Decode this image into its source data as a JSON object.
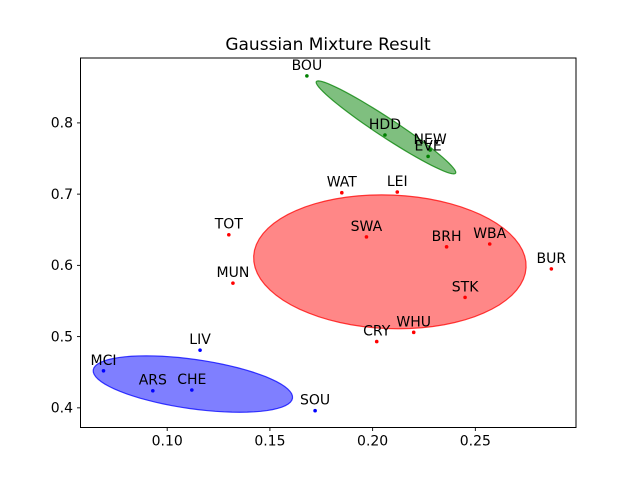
{
  "chart_data": {
    "type": "scatter",
    "title": "Gaussian Mixture Result",
    "xlabel": "",
    "ylabel": "",
    "grid": false,
    "legend": "none",
    "xlim": [
      0.0578,
      0.299
    ],
    "ylim": [
      0.3724,
      0.8911
    ],
    "x_ticks": [
      {
        "value": 0.1,
        "label": "0.10"
      },
      {
        "value": 0.15,
        "label": "0.15"
      },
      {
        "value": 0.2,
        "label": "0.20"
      },
      {
        "value": 0.25,
        "label": "0.25"
      }
    ],
    "y_ticks": [
      {
        "value": 0.4,
        "label": "0.4"
      },
      {
        "value": 0.5,
        "label": "0.5"
      },
      {
        "value": 0.6,
        "label": "0.6"
      },
      {
        "value": 0.7,
        "label": "0.7"
      },
      {
        "value": 0.8,
        "label": "0.8"
      }
    ],
    "clusters": [
      {
        "name": "green",
        "color": "#008000",
        "fill_opacity": 0.5,
        "stroke_opacity": 0.75,
        "ellipse": {
          "center": [
            0.2065,
            0.7937
          ],
          "axis1": [
            0.0339,
            -0.0643
          ],
          "axis2": [
            -0.0025,
            -0.0112
          ]
        },
        "points": [
          {
            "label": "BOU",
            "x": 0.168,
            "y": 0.866
          },
          {
            "label": "HDD",
            "x": 0.206,
            "y": 0.783
          },
          {
            "label": "NEW",
            "x": 0.228,
            "y": 0.762
          },
          {
            "label": "EVE",
            "x": 0.227,
            "y": 0.753
          }
        ]
      },
      {
        "name": "red",
        "color": "#ff0000",
        "fill_opacity": 0.47,
        "stroke_opacity": 0.75,
        "ellipse": {
          "center": [
            0.2084,
            0.605
          ],
          "axis1": [
            0.0662,
            0.0
          ],
          "axis2": [
            -0.004,
            0.094
          ]
        },
        "points": [
          {
            "label": "WAT",
            "x": 0.185,
            "y": 0.702
          },
          {
            "label": "LEI",
            "x": 0.212,
            "y": 0.703
          },
          {
            "label": "TOT",
            "x": 0.13,
            "y": 0.643
          },
          {
            "label": "SWA",
            "x": 0.197,
            "y": 0.64
          },
          {
            "label": "BRH",
            "x": 0.236,
            "y": 0.626
          },
          {
            "label": "WBA",
            "x": 0.257,
            "y": 0.63
          },
          {
            "label": "BUR",
            "x": 0.287,
            "y": 0.595
          },
          {
            "label": "MUN",
            "x": 0.132,
            "y": 0.575
          },
          {
            "label": "STK",
            "x": 0.245,
            "y": 0.555
          },
          {
            "label": "WHU",
            "x": 0.22,
            "y": 0.506
          },
          {
            "label": "CRY",
            "x": 0.202,
            "y": 0.493
          }
        ]
      },
      {
        "name": "blue",
        "color": "#0000ff",
        "fill_opacity": 0.5,
        "stroke_opacity": 0.75,
        "ellipse": {
          "center": [
            0.1125,
            0.4334
          ],
          "axis1": [
            0.0485,
            -0.0198
          ],
          "axis2": [
            -0.0017,
            -0.0343
          ]
        },
        "points": [
          {
            "label": "LIV",
            "x": 0.116,
            "y": 0.481
          },
          {
            "label": "MCI",
            "x": 0.069,
            "y": 0.452
          },
          {
            "label": "ARS",
            "x": 0.093,
            "y": 0.424
          },
          {
            "label": "CHE",
            "x": 0.112,
            "y": 0.425
          },
          {
            "label": "SOU",
            "x": 0.172,
            "y": 0.396
          }
        ]
      }
    ]
  }
}
